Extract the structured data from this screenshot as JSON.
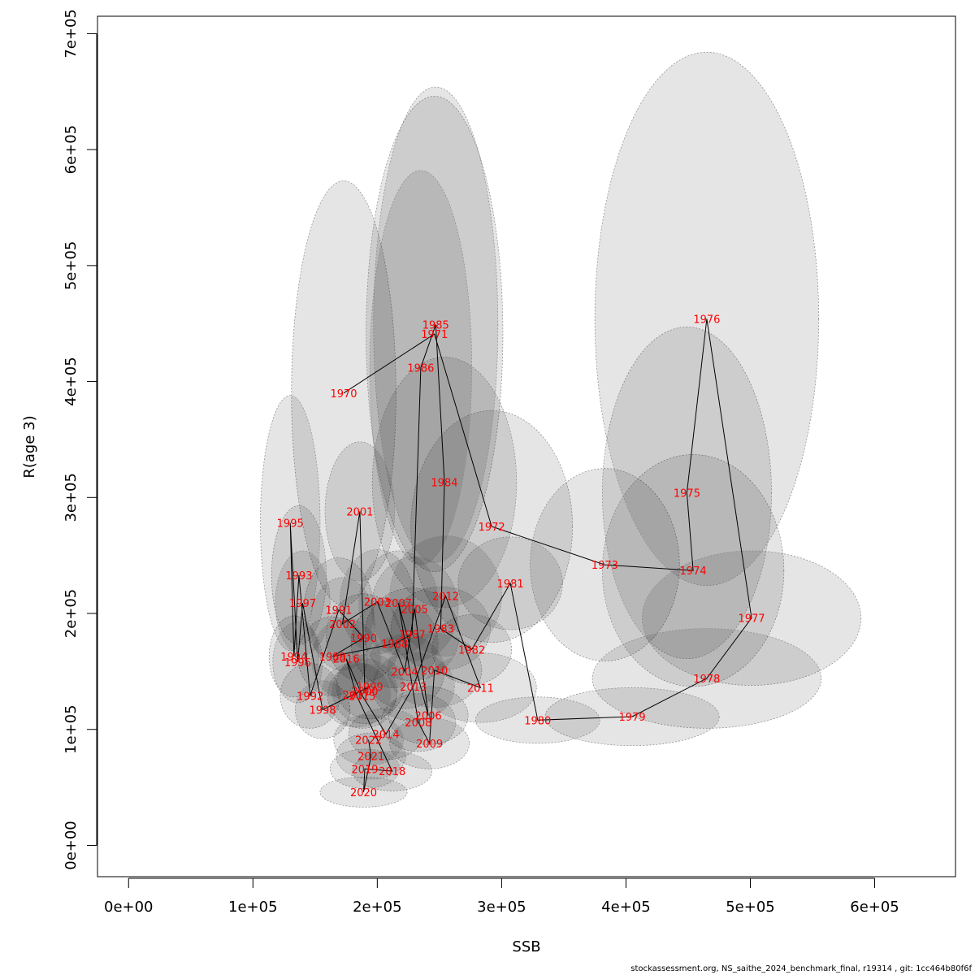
{
  "footer_text": "stockassessment.org, NS_saithe_2024_benchmark_final, r19314 , git: 1cc464b80f6f",
  "chart_data": {
    "type": "scatter",
    "title": "",
    "xlabel": "SSB",
    "ylabel": "R(age 3)",
    "xlim": [
      -25000,
      665000
    ],
    "ylim": [
      -27000,
      715000
    ],
    "x_ticks": [
      0,
      100000,
      200000,
      300000,
      400000,
      500000,
      600000
    ],
    "x_tick_labels": [
      "0e+00",
      "1e+05",
      "2e+05",
      "3e+05",
      "4e+05",
      "5e+05",
      "6e+05"
    ],
    "y_ticks": [
      0,
      100000,
      200000,
      300000,
      400000,
      500000,
      600000,
      700000
    ],
    "y_tick_labels": [
      "0e+00",
      "1e+05",
      "2e+05",
      "3e+05",
      "4e+05",
      "5e+05",
      "6e+05",
      "7e+05"
    ],
    "grid": false,
    "legend": "none",
    "colors": {
      "points_label": "#ff0000",
      "path": "#000000",
      "ellipse_fill": "#000000",
      "ellipse_stroke": "#888888"
    },
    "points": [
      {
        "year": "1970",
        "ssb": 173000,
        "r": 390000
      },
      {
        "year": "1971",
        "ssb": 246000,
        "r": 441000
      },
      {
        "year": "1972",
        "ssb": 292000,
        "r": 275000
      },
      {
        "year": "1973",
        "ssb": 383000,
        "r": 242000
      },
      {
        "year": "1974",
        "ssb": 454000,
        "r": 237000
      },
      {
        "year": "1975",
        "ssb": 449000,
        "r": 304000
      },
      {
        "year": "1976",
        "ssb": 465000,
        "r": 454000
      },
      {
        "year": "1977",
        "ssb": 501000,
        "r": 196000
      },
      {
        "year": "1978",
        "ssb": 465000,
        "r": 144000
      },
      {
        "year": "1979",
        "ssb": 405000,
        "r": 111000
      },
      {
        "year": "1980",
        "ssb": 329000,
        "r": 108000
      },
      {
        "year": "1981",
        "ssb": 307000,
        "r": 226000
      },
      {
        "year": "1982",
        "ssb": 276000,
        "r": 169000
      },
      {
        "year": "1983",
        "ssb": 251000,
        "r": 187000
      },
      {
        "year": "1984",
        "ssb": 254000,
        "r": 313000
      },
      {
        "year": "1985",
        "ssb": 247000,
        "r": 449000
      },
      {
        "year": "1986",
        "ssb": 235000,
        "r": 412000
      },
      {
        "year": "1987",
        "ssb": 228000,
        "r": 182000
      },
      {
        "year": "1988",
        "ssb": 214000,
        "r": 174000
      },
      {
        "year": "1989",
        "ssb": 164000,
        "r": 163000
      },
      {
        "year": "1990",
        "ssb": 189000,
        "r": 179000
      },
      {
        "year": "1991",
        "ssb": 169000,
        "r": 203000
      },
      {
        "year": "1992",
        "ssb": 146000,
        "r": 129000
      },
      {
        "year": "1993",
        "ssb": 137000,
        "r": 233000
      },
      {
        "year": "1994",
        "ssb": 133000,
        "r": 163000
      },
      {
        "year": "1995",
        "ssb": 130000,
        "r": 278000
      },
      {
        "year": "1996",
        "ssb": 136000,
        "r": 158000
      },
      {
        "year": "1997",
        "ssb": 140000,
        "r": 209000
      },
      {
        "year": "1998",
        "ssb": 156000,
        "r": 117000
      },
      {
        "year": "1999",
        "ssb": 194000,
        "r": 137000
      },
      {
        "year": "2000",
        "ssb": 190000,
        "r": 133000
      },
      {
        "year": "2001",
        "ssb": 186000,
        "r": 288000
      },
      {
        "year": "2002",
        "ssb": 172000,
        "r": 191000
      },
      {
        "year": "2003",
        "ssb": 200000,
        "r": 210000
      },
      {
        "year": "2004",
        "ssb": 222000,
        "r": 150000
      },
      {
        "year": "2005",
        "ssb": 230000,
        "r": 204000
      },
      {
        "year": "2006",
        "ssb": 241000,
        "r": 112000
      },
      {
        "year": "2007",
        "ssb": 217000,
        "r": 209000
      },
      {
        "year": "2008",
        "ssb": 233000,
        "r": 106000
      },
      {
        "year": "2009",
        "ssb": 242000,
        "r": 88000
      },
      {
        "year": "2010",
        "ssb": 246000,
        "r": 151000
      },
      {
        "year": "2011",
        "ssb": 283000,
        "r": 136000
      },
      {
        "year": "2012",
        "ssb": 255000,
        "r": 215000
      },
      {
        "year": "2013",
        "ssb": 229000,
        "r": 137000
      },
      {
        "year": "2014",
        "ssb": 207000,
        "r": 96000
      },
      {
        "year": "2015",
        "ssb": 188000,
        "r": 129000
      },
      {
        "year": "2016",
        "ssb": 175000,
        "r": 161000
      },
      {
        "year": "2017",
        "ssb": 183000,
        "r": 130000
      },
      {
        "year": "2018",
        "ssb": 212000,
        "r": 64000
      },
      {
        "year": "2019",
        "ssb": 190000,
        "r": 66000
      },
      {
        "year": "2020",
        "ssb": 189000,
        "r": 46000
      },
      {
        "year": "2021",
        "ssb": 195000,
        "r": 77000
      },
      {
        "year": "2022",
        "ssb": 193000,
        "r": 91000
      }
    ],
    "ellipses": [
      {
        "year": "1970",
        "rx": 42000,
        "ry": 183000
      },
      {
        "year": "1971",
        "rx": 55000,
        "ry": 205000
      },
      {
        "year": "1972",
        "rx": 65000,
        "ry": 100000
      },
      {
        "year": "1973",
        "rx": 60000,
        "ry": 83000
      },
      {
        "year": "1974",
        "rx": 73000,
        "ry": 100000
      },
      {
        "year": "1975",
        "rx": 68000,
        "ry": 143000
      },
      {
        "year": "1976",
        "rx": 90000,
        "ry": 230000
      },
      {
        "year": "1977",
        "rx": 88000,
        "ry": 58000
      },
      {
        "year": "1978",
        "rx": 92000,
        "ry": 43000
      },
      {
        "year": "1979",
        "rx": 70000,
        "ry": 25000
      },
      {
        "year": "1980",
        "rx": 50000,
        "ry": 20000
      },
      {
        "year": "1981",
        "rx": 42000,
        "ry": 40000
      },
      {
        "year": "1982",
        "rx": 32000,
        "ry": 30000
      },
      {
        "year": "1983",
        "rx": 40000,
        "ry": 36000
      },
      {
        "year": "1984",
        "rx": 58000,
        "ry": 108000
      },
      {
        "year": "1985",
        "rx": 50000,
        "ry": 205000
      },
      {
        "year": "1986",
        "rx": 41000,
        "ry": 170000
      },
      {
        "year": "1987",
        "rx": 38000,
        "ry": 40000
      },
      {
        "year": "1988",
        "rx": 35000,
        "ry": 38000
      },
      {
        "year": "1989",
        "rx": 28000,
        "ry": 34000
      },
      {
        "year": "1990",
        "rx": 30000,
        "ry": 38000
      },
      {
        "year": "1991",
        "rx": 28000,
        "ry": 45000
      },
      {
        "year": "1992",
        "rx": 24000,
        "ry": 28000
      },
      {
        "year": "1993",
        "rx": 22000,
        "ry": 60000
      },
      {
        "year": "1994",
        "rx": 20000,
        "ry": 35000
      },
      {
        "year": "1995",
        "rx": 24000,
        "ry": 110000
      },
      {
        "year": "1996",
        "rx": 20000,
        "ry": 35000
      },
      {
        "year": "1997",
        "rx": 22000,
        "ry": 45000
      },
      {
        "year": "1998",
        "rx": 22000,
        "ry": 25000
      },
      {
        "year": "1999",
        "rx": 27000,
        "ry": 28000
      },
      {
        "year": "2000",
        "rx": 26000,
        "ry": 28000
      },
      {
        "year": "2001",
        "rx": 28000,
        "ry": 60000
      },
      {
        "year": "2002",
        "rx": 26000,
        "ry": 40000
      },
      {
        "year": "2003",
        "rx": 30000,
        "ry": 45000
      },
      {
        "year": "2004",
        "rx": 32000,
        "ry": 32000
      },
      {
        "year": "2005",
        "rx": 35000,
        "ry": 45000
      },
      {
        "year": "2006",
        "rx": 32000,
        "ry": 25000
      },
      {
        "year": "2007",
        "rx": 32000,
        "ry": 45000
      },
      {
        "year": "2008",
        "rx": 30000,
        "ry": 25000
      },
      {
        "year": "2009",
        "rx": 32000,
        "ry": 22000
      },
      {
        "year": "2010",
        "rx": 38000,
        "ry": 32000
      },
      {
        "year": "2011",
        "rx": 45000,
        "ry": 30000
      },
      {
        "year": "2012",
        "rx": 45000,
        "ry": 52000
      },
      {
        "year": "2013",
        "rx": 33000,
        "ry": 30000
      },
      {
        "year": "2014",
        "rx": 30000,
        "ry": 22000
      },
      {
        "year": "2015",
        "rx": 28000,
        "ry": 28000
      },
      {
        "year": "2016",
        "rx": 28000,
        "ry": 35000
      },
      {
        "year": "2017",
        "rx": 28000,
        "ry": 28000
      },
      {
        "year": "2018",
        "rx": 32000,
        "ry": 17000
      },
      {
        "year": "2019",
        "rx": 28000,
        "ry": 17000
      },
      {
        "year": "2020",
        "rx": 35000,
        "ry": 13000
      },
      {
        "year": "2021",
        "rx": 28000,
        "ry": 20000
      },
      {
        "year": "2022",
        "rx": 28000,
        "ry": 22000
      }
    ]
  }
}
